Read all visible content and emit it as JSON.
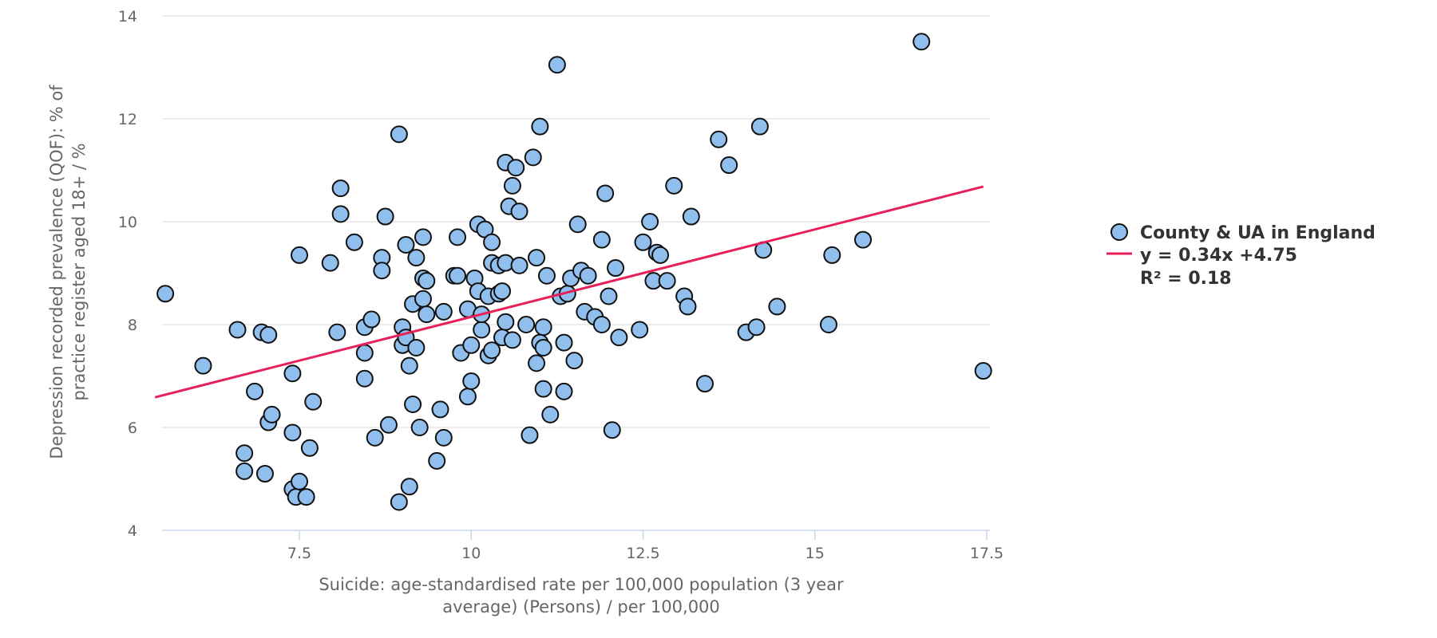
{
  "chart_data": {
    "type": "scatter",
    "title": "",
    "xlabel_lines": [
      "Suicide: age-standardised rate per 100,000 population (3 year",
      "average) (Persons) / per 100,000"
    ],
    "ylabel_lines": [
      "Depression recorded prevalence (QOF): % of",
      "practice register aged 18+ / %"
    ],
    "xlim": [
      5.4,
      17.5
    ],
    "ylim": [
      4,
      14
    ],
    "x_ticks": [
      7.5,
      10,
      12.5,
      15,
      17.5
    ],
    "y_ticks": [
      4,
      6,
      8,
      10,
      12,
      14
    ],
    "x_tick_labels": [
      "7.5",
      "10",
      "12.5",
      "15",
      "17.5"
    ],
    "y_tick_labels": [
      "4",
      "6",
      "8",
      "10",
      "12",
      "14"
    ],
    "grid": "horizontal",
    "legend_position": "right",
    "colors": {
      "point": "#90bfed",
      "point_stroke": "#111111",
      "trend": "#e8205a",
      "grid": "#e6e6e6",
      "axis": "#ccd6eb"
    },
    "series": [
      {
        "name": "County & UA in England",
        "marker": "circle",
        "points": [
          [
            5.55,
            8.6
          ],
          [
            6.1,
            7.2
          ],
          [
            6.6,
            7.9
          ],
          [
            6.7,
            5.5
          ],
          [
            6.7,
            5.15
          ],
          [
            6.85,
            6.7
          ],
          [
            6.95,
            7.85
          ],
          [
            7.0,
            5.1
          ],
          [
            7.05,
            6.1
          ],
          [
            7.05,
            7.8
          ],
          [
            7.1,
            6.25
          ],
          [
            7.4,
            7.05
          ],
          [
            7.4,
            5.9
          ],
          [
            7.4,
            4.8
          ],
          [
            7.45,
            4.65
          ],
          [
            7.5,
            4.95
          ],
          [
            7.5,
            9.35
          ],
          [
            7.6,
            4.65
          ],
          [
            7.65,
            5.6
          ],
          [
            7.7,
            6.5
          ],
          [
            7.95,
            9.2
          ],
          [
            8.05,
            7.85
          ],
          [
            8.1,
            10.15
          ],
          [
            8.1,
            10.65
          ],
          [
            8.3,
            9.6
          ],
          [
            8.45,
            7.45
          ],
          [
            8.45,
            7.95
          ],
          [
            8.45,
            6.95
          ],
          [
            8.55,
            8.1
          ],
          [
            8.6,
            5.8
          ],
          [
            8.7,
            9.3
          ],
          [
            8.7,
            9.05
          ],
          [
            8.75,
            10.1
          ],
          [
            8.8,
            6.05
          ],
          [
            8.95,
            11.7
          ],
          [
            8.95,
            4.55
          ],
          [
            9.0,
            7.6
          ],
          [
            9.0,
            7.95
          ],
          [
            9.05,
            9.55
          ],
          [
            9.05,
            7.75
          ],
          [
            9.1,
            7.2
          ],
          [
            9.1,
            4.85
          ],
          [
            9.15,
            8.4
          ],
          [
            9.15,
            6.45
          ],
          [
            9.2,
            7.55
          ],
          [
            9.2,
            9.3
          ],
          [
            9.25,
            6.0
          ],
          [
            9.3,
            8.9
          ],
          [
            9.3,
            8.5
          ],
          [
            9.3,
            9.7
          ],
          [
            9.35,
            8.2
          ],
          [
            9.35,
            8.85
          ],
          [
            9.5,
            5.35
          ],
          [
            9.55,
            6.35
          ],
          [
            9.6,
            5.8
          ],
          [
            9.6,
            8.25
          ],
          [
            9.75,
            8.95
          ],
          [
            9.8,
            8.95
          ],
          [
            9.8,
            9.7
          ],
          [
            9.85,
            7.45
          ],
          [
            9.95,
            6.6
          ],
          [
            9.95,
            8.3
          ],
          [
            10.0,
            6.9
          ],
          [
            10.0,
            7.6
          ],
          [
            10.05,
            8.9
          ],
          [
            10.1,
            8.65
          ],
          [
            10.1,
            9.95
          ],
          [
            10.15,
            7.9
          ],
          [
            10.15,
            8.2
          ],
          [
            10.2,
            9.85
          ],
          [
            10.25,
            7.4
          ],
          [
            10.25,
            8.55
          ],
          [
            10.3,
            9.2
          ],
          [
            10.3,
            9.6
          ],
          [
            10.3,
            7.5
          ],
          [
            10.4,
            9.15
          ],
          [
            10.4,
            8.6
          ],
          [
            10.45,
            8.65
          ],
          [
            10.45,
            7.75
          ],
          [
            10.5,
            11.15
          ],
          [
            10.5,
            8.05
          ],
          [
            10.5,
            9.2
          ],
          [
            10.55,
            10.3
          ],
          [
            10.6,
            7.7
          ],
          [
            10.6,
            10.7
          ],
          [
            10.65,
            11.05
          ],
          [
            10.7,
            10.2
          ],
          [
            10.7,
            9.15
          ],
          [
            10.8,
            8.0
          ],
          [
            10.85,
            5.85
          ],
          [
            10.9,
            11.25
          ],
          [
            10.95,
            7.25
          ],
          [
            10.95,
            9.3
          ],
          [
            11.0,
            11.85
          ],
          [
            11.0,
            7.65
          ],
          [
            11.05,
            7.55
          ],
          [
            11.05,
            6.75
          ],
          [
            11.05,
            7.95
          ],
          [
            11.1,
            8.95
          ],
          [
            11.15,
            6.25
          ],
          [
            11.25,
            13.05
          ],
          [
            11.3,
            8.55
          ],
          [
            11.35,
            6.7
          ],
          [
            11.35,
            7.65
          ],
          [
            11.4,
            8.6
          ],
          [
            11.45,
            8.9
          ],
          [
            11.5,
            7.3
          ],
          [
            11.55,
            9.95
          ],
          [
            11.6,
            9.05
          ],
          [
            11.65,
            8.25
          ],
          [
            11.7,
            8.95
          ],
          [
            11.8,
            8.15
          ],
          [
            11.9,
            8.0
          ],
          [
            11.9,
            9.65
          ],
          [
            11.95,
            10.55
          ],
          [
            12.0,
            8.55
          ],
          [
            12.05,
            5.95
          ],
          [
            12.1,
            9.1
          ],
          [
            12.15,
            7.75
          ],
          [
            12.45,
            7.9
          ],
          [
            12.5,
            9.6
          ],
          [
            12.6,
            10.0
          ],
          [
            12.65,
            8.85
          ],
          [
            12.7,
            9.4
          ],
          [
            12.75,
            9.35
          ],
          [
            12.85,
            8.85
          ],
          [
            12.95,
            10.7
          ],
          [
            13.1,
            8.55
          ],
          [
            13.15,
            8.35
          ],
          [
            13.2,
            10.1
          ],
          [
            13.4,
            6.85
          ],
          [
            13.6,
            11.6
          ],
          [
            13.75,
            11.1
          ],
          [
            14.0,
            7.85
          ],
          [
            14.15,
            7.95
          ],
          [
            14.2,
            11.85
          ],
          [
            14.25,
            9.45
          ],
          [
            14.45,
            8.35
          ],
          [
            15.2,
            8.0
          ],
          [
            15.25,
            9.35
          ],
          [
            15.7,
            9.65
          ],
          [
            16.55,
            13.5
          ],
          [
            17.45,
            7.1
          ]
        ]
      },
      {
        "name": "y = 0.34x +4.75",
        "name_line2": "R² = 0.18",
        "type": "trendline",
        "slope": 0.34,
        "intercept": 4.75,
        "x_range": [
          5.4,
          17.45
        ]
      }
    ]
  }
}
